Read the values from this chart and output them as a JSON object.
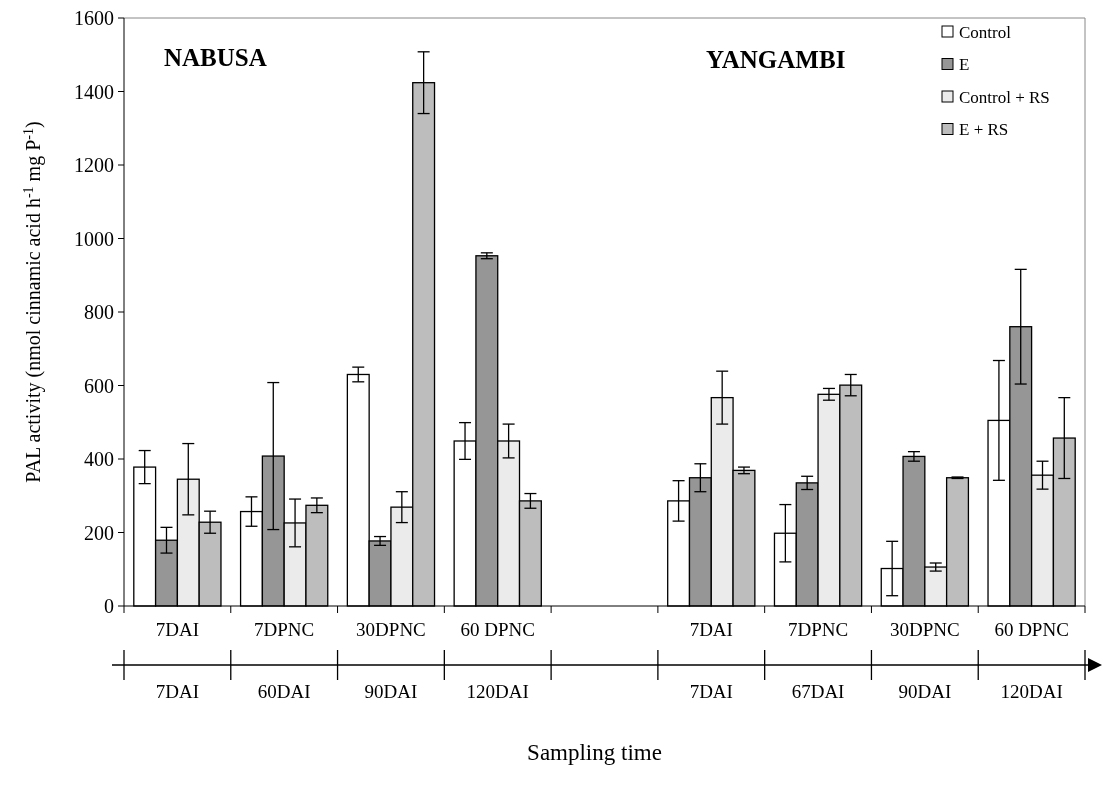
{
  "chart_data": {
    "type": "bar",
    "xlabel": "Sampling time",
    "ylabel": "PAL activity (nmol cinnamic acid h$^{-1}$ mg P$^{-1}$)",
    "categories": [
      "7DAI",
      "7DPNC",
      "30DPNC",
      "60 DPNC",
      null,
      "7DAI",
      "7DPNC",
      "30DPNC",
      "60 DPNC"
    ],
    "series": [
      {
        "name": "Control",
        "color": "#ffffff",
        "values": [
          378,
          257,
          630,
          449,
          null,
          286,
          198,
          102,
          505
        ],
        "errors": [
          45,
          40,
          20,
          50,
          null,
          55,
          78,
          74,
          163
        ]
      },
      {
        "name": "E",
        "color": "#969696",
        "values": [
          179,
          408,
          177,
          953,
          null,
          349,
          335,
          407,
          760
        ],
        "errors": [
          35,
          200,
          12,
          8,
          null,
          38,
          18,
          13,
          156
        ]
      },
      {
        "name": "Control + RS",
        "color": "#ebebeb",
        "values": [
          345,
          226,
          269,
          449,
          null,
          567,
          576,
          106,
          356
        ],
        "errors": [
          97,
          65,
          42,
          46,
          null,
          72,
          16,
          11,
          38
        ]
      },
      {
        "name": "E + RS",
        "color": "#bdbdbd",
        "values": [
          228,
          274,
          1424,
          286,
          null,
          369,
          601,
          349,
          457
        ],
        "errors": [
          30,
          20,
          84,
          20,
          null,
          9,
          29,
          2,
          110
        ]
      }
    ],
    "ylim": [
      0,
      1600
    ],
    "yticks": [
      0,
      200,
      400,
      600,
      800,
      1000,
      1200,
      1400,
      1600
    ],
    "grid": false,
    "legend": "top right",
    "annotations": [
      "NABUSA",
      "YANGAMBI",
      "7DAI",
      "60DAI",
      "90DAI",
      "120DAI",
      "7DAI",
      "67DAI",
      "90DAI",
      "120DAI"
    ]
  }
}
